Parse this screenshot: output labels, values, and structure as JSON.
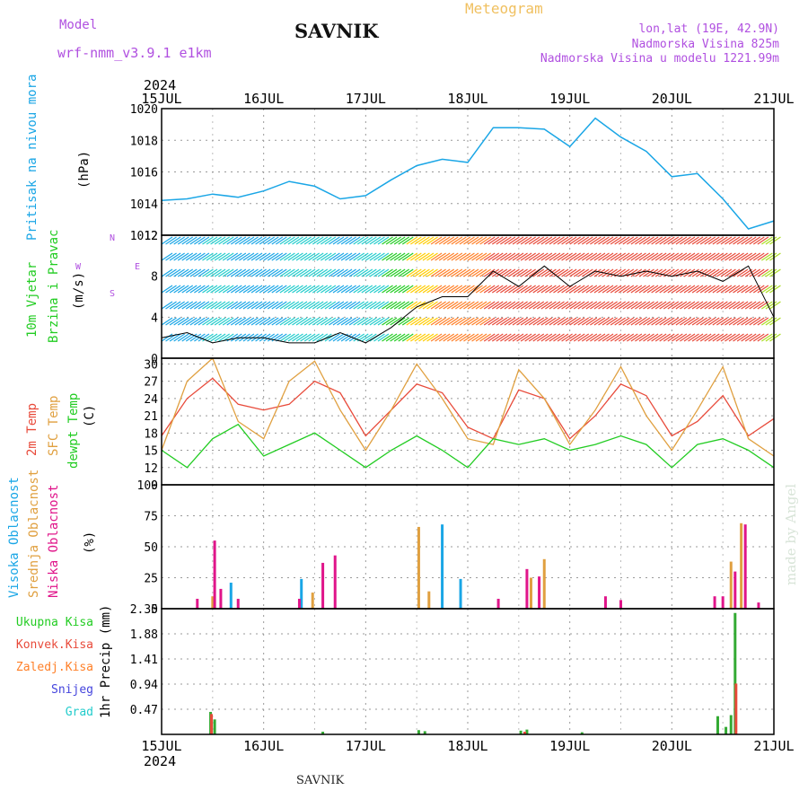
{
  "header": {
    "model_label": "Model",
    "model_name": "wrf-nmm_v3.9.1 e1km",
    "title": "SAVNIK",
    "meteogram_label": "Meteogram",
    "lonlat": "lon,lat (19E, 42.9N)",
    "altitude": "Nadmorska Visina 825m",
    "model_altitude": "Nadmorska Visina u modelu 1221.99m"
  },
  "footer": {
    "station": "SAVNIK"
  },
  "watermark": "made by Angel",
  "colors": {
    "pressure": "#1aa6e6",
    "temp2m": "#e84a3a",
    "sfc": "#e0a040",
    "dew": "#22cc22",
    "high_cloud": "#1aa6e6",
    "mid_cloud": "#e0a040",
    "low_cloud": "#e0158a",
    "total_precip": "#33aa33",
    "conv_precip": "#e84a3a",
    "frozen": "#ff7f27",
    "snow": "#4444dd",
    "hail": "#22cccc",
    "header_purple": "#b050e0",
    "meteogram_orange": "#f0c060"
  },
  "chart_data": [
    {
      "type": "line",
      "panel": "pressure",
      "ylabel": "(hPa)",
      "side_label": "Pritisak na nivou mora",
      "ylim": [
        1012,
        1020
      ],
      "yticks": [
        1012,
        1014,
        1016,
        1018,
        1020
      ],
      "year_top": "2024",
      "year_bottom": "2024",
      "xticks": [
        "15JUL",
        "16JUL",
        "17JUL",
        "18JUL",
        "19JUL",
        "20JUL",
        "21JUL"
      ],
      "x_days": [
        0,
        0.25,
        0.5,
        0.75,
        1,
        1.25,
        1.5,
        1.75,
        2,
        2.25,
        2.5,
        2.75,
        3,
        3.25,
        3.5,
        3.75,
        4,
        4.25,
        4.5,
        4.75,
        5,
        5.25,
        5.5,
        5.75,
        6
      ],
      "values": [
        1014.2,
        1014.3,
        1014.6,
        1014.4,
        1014.8,
        1015.4,
        1015.1,
        1014.3,
        1014.5,
        1015.5,
        1016.4,
        1016.8,
        1016.6,
        1018.8,
        1018.8,
        1018.7,
        1017.6,
        1019.4,
        1018.2,
        1017.3,
        1015.7,
        1015.9,
        1014.3,
        1012.4,
        1012.9
      ],
      "grid": true
    },
    {
      "type": "line",
      "panel": "wind",
      "ylabel": "(m/s)",
      "side_label_1": "10m Vjetar",
      "side_label_2": "Brzina i Pravac",
      "compass": {
        "n": "N",
        "w": "W",
        "e": "E",
        "s": "S"
      },
      "ylim": [
        0,
        12
      ],
      "yticks": [
        0,
        4,
        8,
        12
      ],
      "x_days": [
        0,
        0.25,
        0.5,
        0.75,
        1,
        1.25,
        1.5,
        1.75,
        2,
        2.25,
        2.5,
        2.75,
        3,
        3.25,
        3.5,
        3.75,
        4,
        4.25,
        4.5,
        4.75,
        5,
        5.25,
        5.5,
        5.75,
        6
      ],
      "values": [
        2,
        2.5,
        1.5,
        2,
        2,
        1.5,
        1.5,
        2.5,
        1.5,
        3,
        5,
        6,
        6,
        8.5,
        7,
        9,
        7,
        8.5,
        8,
        8.5,
        8,
        8.5,
        7.5,
        9,
        4
      ],
      "grid": true
    },
    {
      "type": "line",
      "panel": "temperature",
      "ylabel": "(C)",
      "side_labels": [
        "2m Temp",
        "SFC Temp",
        "dewpt Temp"
      ],
      "ylim": [
        9,
        31
      ],
      "yticks": [
        9,
        12,
        15,
        18,
        21,
        24,
        27,
        30
      ],
      "x_days": [
        0,
        0.25,
        0.5,
        0.75,
        1,
        1.25,
        1.5,
        1.75,
        2,
        2.25,
        2.5,
        2.75,
        3,
        3.25,
        3.5,
        3.75,
        4,
        4.25,
        4.5,
        4.75,
        5,
        5.25,
        5.5,
        5.75,
        6
      ],
      "series": [
        {
          "name": "2m Temp",
          "values": [
            17.5,
            24,
            27.5,
            23,
            22,
            23,
            27,
            25,
            17.5,
            22,
            26.5,
            25,
            19,
            17,
            25.5,
            24,
            17,
            21,
            26.5,
            24.5,
            17.5,
            20,
            24.5,
            17.5,
            20.5
          ]
        },
        {
          "name": "SFC Temp",
          "values": [
            15,
            27,
            31,
            20,
            17,
            27,
            30.5,
            22,
            15,
            22,
            30,
            24,
            17,
            16,
            29,
            24,
            16,
            22,
            29.5,
            21,
            15,
            22,
            29.5,
            17,
            14
          ]
        },
        {
          "name": "dewpt Temp",
          "values": [
            15,
            12,
            17,
            19.5,
            14,
            16,
            18,
            15,
            12,
            15,
            17.5,
            15,
            12,
            17,
            16,
            17,
            15,
            16,
            17.5,
            16,
            12,
            16,
            17,
            15,
            12
          ]
        }
      ],
      "grid": true
    },
    {
      "type": "bar",
      "panel": "cloud",
      "ylabel": "(%)",
      "side_labels": [
        "Visoka Oblacnost",
        "Srednja Oblacnost",
        "Niska Oblacnost"
      ],
      "ylim": [
        0,
        100
      ],
      "yticks": [
        0,
        25,
        50,
        75,
        100
      ],
      "series": [
        {
          "name": "Visoka Oblacnost",
          "x_days": [
            0.68,
            1.37,
            2.75,
            2.93
          ],
          "values": [
            21,
            24,
            68,
            24
          ]
        },
        {
          "name": "Srednja Oblacnost",
          "x_days": [
            0.5,
            1.48,
            2.52,
            2.62,
            3.62,
            3.75,
            5.58,
            5.68
          ],
          "values": [
            10,
            13,
            66,
            14,
            25,
            40,
            38,
            69
          ]
        },
        {
          "name": "Niska Oblacnost",
          "x_days": [
            0.35,
            0.52,
            0.58,
            0.75,
            1.35,
            1.58,
            1.7,
            3.3,
            3.58,
            3.7,
            4.35,
            4.5,
            5.42,
            5.5,
            5.62,
            5.72,
            5.85
          ],
          "values": [
            8,
            55,
            16,
            8,
            8,
            37,
            43,
            8,
            32,
            26,
            10,
            7,
            10,
            10,
            30,
            68,
            5
          ]
        }
      ],
      "grid": true
    },
    {
      "type": "bar",
      "panel": "precip",
      "ylabel": "1hr Precip (mm)",
      "side_labels": [
        "Ukupna Kisa",
        "Konvek.Kisa",
        "Zaledj.Kisa",
        "Snijeg",
        "Grad"
      ],
      "ylim": [
        0,
        2.35
      ],
      "yticks": [
        0.47,
        0.94,
        1.41,
        1.88,
        2.35
      ],
      "series": [
        {
          "name": "Ukupna Kisa",
          "x_days": [
            0.48,
            0.52,
            1.58,
            2.52,
            2.58,
            3.52,
            3.58,
            4.12,
            5.45,
            5.53,
            5.58,
            5.62
          ],
          "values": [
            0.42,
            0.28,
            0.05,
            0.08,
            0.06,
            0.07,
            0.09,
            0.04,
            0.34,
            0.14,
            0.36,
            2.27
          ]
        },
        {
          "name": "Konvek.Kisa",
          "x_days": [
            0.48,
            3.55,
            5.62
          ],
          "values": [
            0.38,
            0.05,
            0.95
          ]
        }
      ],
      "grid": true
    }
  ]
}
